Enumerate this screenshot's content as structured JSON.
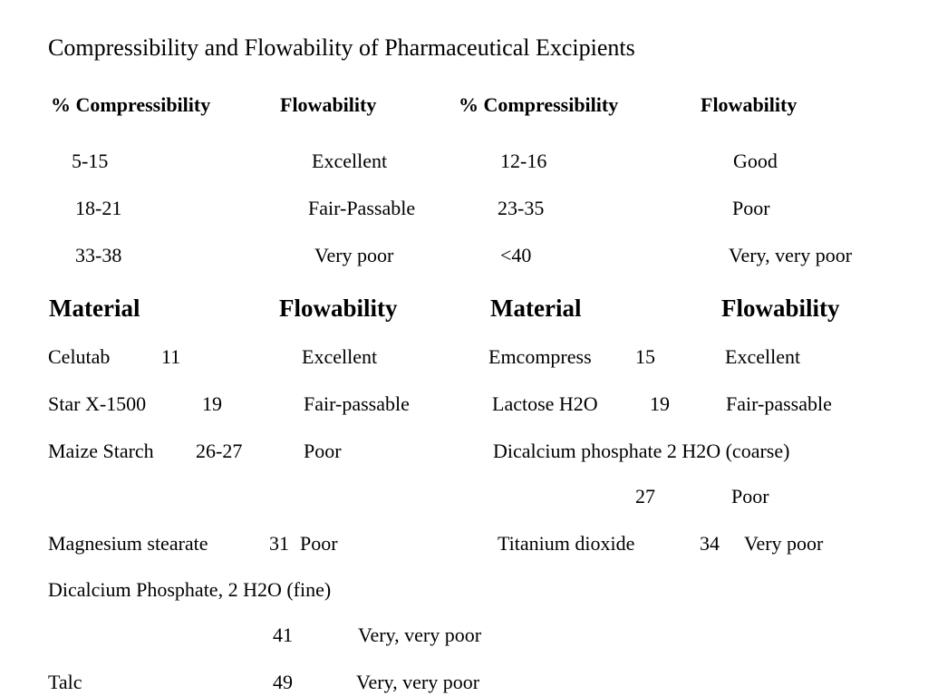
{
  "title": "Compressibility and Flowability of  Pharmaceutical Excipients",
  "scale_table": {
    "headers": [
      "% Compressibility",
      "Flowability",
      "% Compressibility",
      "Flowability"
    ],
    "rows": [
      [
        "5-15",
        "Excellent",
        "12-16",
        "Good"
      ],
      [
        "18-21",
        "Fair-Passable",
        "23-35",
        "Poor"
      ],
      [
        "33-38",
        "Very poor",
        "<40",
        "Very, very poor"
      ]
    ]
  },
  "material_table": {
    "headers": [
      "Material",
      "Flowability",
      "Material",
      "Flowability"
    ],
    "rows": [
      {
        "l_name": "Celutab",
        "l_value": "11",
        "l_flow": "Excellent",
        "r_name": "Emcompress",
        "r_value": "15",
        "r_flow": "Excellent"
      },
      {
        "l_name": "Star X-1500",
        "l_value": "19",
        "l_flow": "Fair-passable",
        "r_name": "Lactose H2O",
        "r_value": "19",
        "r_flow": "Fair-passable"
      },
      {
        "l_name": "Maize Starch",
        "l_value": "26-27",
        "l_flow": "Poor",
        "r_name": "Dicalcium phosphate 2 H2O  (coarse)",
        "r_value": "27",
        "r_flow": "Poor"
      },
      {
        "l_name": "Magnesium stearate",
        "l_value": "31",
        "l_flow": "Poor",
        "r_name": "Titanium dioxide",
        "r_value": "34",
        "r_flow": "Very poor"
      },
      {
        "l_name": "Dicalcium Phosphate, 2 H2O  (fine)",
        "l_value": "41",
        "l_flow": "Very, very poor"
      },
      {
        "l_name": "Talc",
        "l_value": "49",
        "l_flow": "Very, very poor"
      }
    ]
  }
}
